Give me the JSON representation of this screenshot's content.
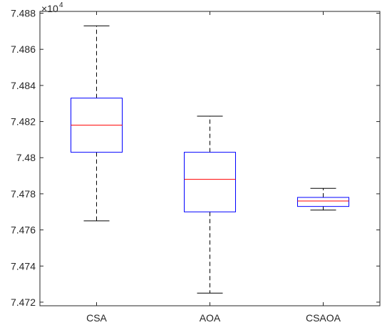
{
  "chart_data": {
    "type": "boxplot",
    "categories": [
      "CSA",
      "AOA",
      "CSAOA"
    ],
    "y_multiplier_label": {
      "base": "×10",
      "exponent": "4"
    },
    "ylim": [
      7.4718,
      7.4881
    ],
    "yticks": [
      7.472,
      7.474,
      7.476,
      7.478,
      7.48,
      7.482,
      7.484,
      7.486,
      7.488
    ],
    "ytick_labels": [
      "7.472",
      "7.474",
      "7.476",
      "7.478",
      "7.48",
      "7.482",
      "7.484",
      "7.486",
      "7.488"
    ],
    "boxes": [
      {
        "name": "CSA",
        "whisker_low": 7.4765,
        "q1": 7.4803,
        "median": 7.4818,
        "q3": 7.4833,
        "whisker_high": 7.4873
      },
      {
        "name": "AOA",
        "whisker_low": 7.4725,
        "q1": 7.477,
        "median": 7.4788,
        "q3": 7.4803,
        "whisker_high": 7.4823
      },
      {
        "name": "CSAOA",
        "whisker_low": 7.4771,
        "q1": 7.4773,
        "median": 7.4776,
        "q3": 7.4778,
        "whisker_high": 7.4783
      }
    ],
    "colors": {
      "box": "#0000ff",
      "median": "#ff0000",
      "whisker": "#000000",
      "axis": "#262626"
    },
    "grid": false
  }
}
